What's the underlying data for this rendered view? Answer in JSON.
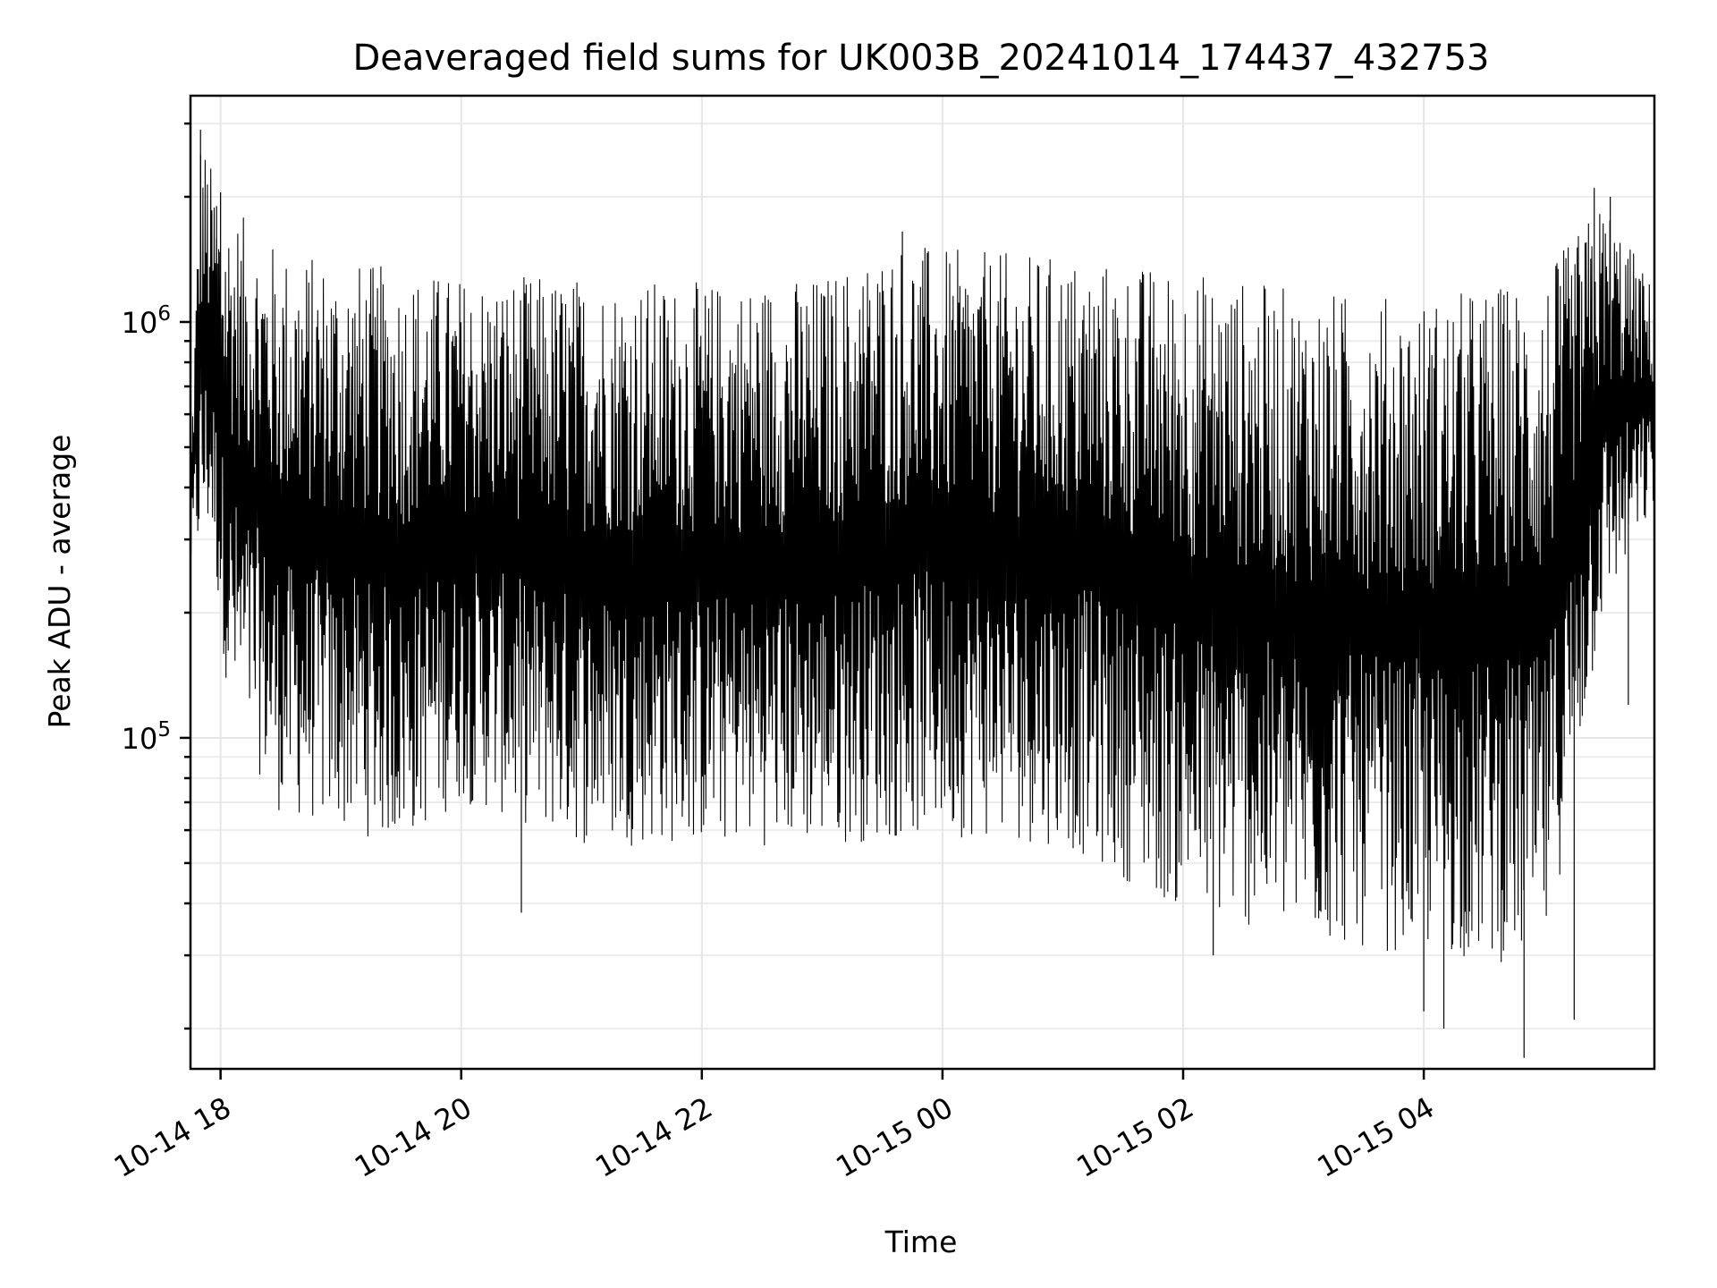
{
  "chart_data": {
    "type": "line",
    "title": "Deaveraged field sums for UK003B_20241014_174437_432753",
    "xlabel": "Time",
    "ylabel": "Peak ADU - average",
    "y_scale": "log",
    "xlim": [
      "2024-10-14T17:45",
      "2024-10-15T05:55"
    ],
    "ylim": [
      16000,
      3500000
    ],
    "grid": true,
    "line_color": "#000000",
    "x_ticks": [
      {
        "value": "2024-10-14T18:00",
        "label": "10-14 18"
      },
      {
        "value": "2024-10-14T20:00",
        "label": "10-14 20"
      },
      {
        "value": "2024-10-14T22:00",
        "label": "10-14 22"
      },
      {
        "value": "2024-10-15T00:00",
        "label": "10-15 00"
      },
      {
        "value": "2024-10-15T02:00",
        "label": "10-15 02"
      },
      {
        "value": "2024-10-15T04:00",
        "label": "10-15 04"
      }
    ],
    "y_ticks": [
      {
        "value": 100000,
        "base": "10",
        "exp": "5"
      },
      {
        "value": 1000000,
        "base": "10",
        "exp": "6"
      }
    ],
    "series": [
      {
        "envelope_upper": [
          [
            "2024-10-14T17:45",
            450000
          ],
          [
            "2024-10-14T17:50",
            2900000
          ],
          [
            "2024-10-14T18:00",
            2000000
          ],
          [
            "2024-10-14T18:30",
            1500000
          ],
          [
            "2024-10-14T19:30",
            1350000
          ],
          [
            "2024-10-14T20:00",
            1300000
          ],
          [
            "2024-10-14T21:00",
            1300000
          ],
          [
            "2024-10-14T22:00",
            1250000
          ],
          [
            "2024-10-14T23:00",
            1300000
          ],
          [
            "2024-10-14T23:40",
            1600000
          ],
          [
            "2024-10-15T00:00",
            1500000
          ],
          [
            "2024-10-15T01:00",
            1450000
          ],
          [
            "2024-10-15T02:00",
            1350000
          ],
          [
            "2024-10-15T03:00",
            1200000
          ],
          [
            "2024-10-15T04:00",
            1150000
          ],
          [
            "2024-10-15T05:00",
            1300000
          ],
          [
            "2024-10-15T05:30",
            2000000
          ],
          [
            "2024-10-15T05:55",
            1200000
          ]
        ],
        "envelope_lower": [
          [
            "2024-10-14T17:45",
            250000
          ],
          [
            "2024-10-14T17:55",
            300000
          ],
          [
            "2024-10-14T18:05",
            110000
          ],
          [
            "2024-10-14T18:30",
            65000
          ],
          [
            "2024-10-14T19:30",
            55000
          ],
          [
            "2024-10-14T20:00",
            70000
          ],
          [
            "2024-10-14T21:00",
            55000
          ],
          [
            "2024-10-14T22:00",
            55000
          ],
          [
            "2024-10-14T23:00",
            55000
          ],
          [
            "2024-10-15T00:00",
            58000
          ],
          [
            "2024-10-15T01:00",
            55000
          ],
          [
            "2024-10-15T02:00",
            38000
          ],
          [
            "2024-10-15T03:00",
            32000
          ],
          [
            "2024-10-15T04:00",
            30000
          ],
          [
            "2024-10-15T05:00",
            28000
          ],
          [
            "2024-10-15T05:30",
            200000
          ],
          [
            "2024-10-15T05:55",
            350000
          ]
        ],
        "spikes": [
          [
            "2024-10-14T17:50",
            2900000
          ],
          [
            "2024-10-14T17:58",
            1900000
          ],
          [
            "2024-10-14T18:00",
            2050000
          ],
          [
            "2024-10-14T20:30",
            38000
          ],
          [
            "2024-10-15T02:15",
            30000
          ],
          [
            "2024-10-15T04:00",
            22000
          ],
          [
            "2024-10-15T04:10",
            20000
          ],
          [
            "2024-10-15T04:50",
            17000
          ],
          [
            "2024-10-15T05:15",
            21000
          ],
          [
            "2024-10-15T05:25",
            2100000
          ],
          [
            "2024-10-15T05:33",
            2000000
          ],
          [
            "2024-10-15T05:42",
            120000
          ],
          [
            "2024-10-14T23:40",
            1650000
          ]
        ]
      }
    ]
  }
}
